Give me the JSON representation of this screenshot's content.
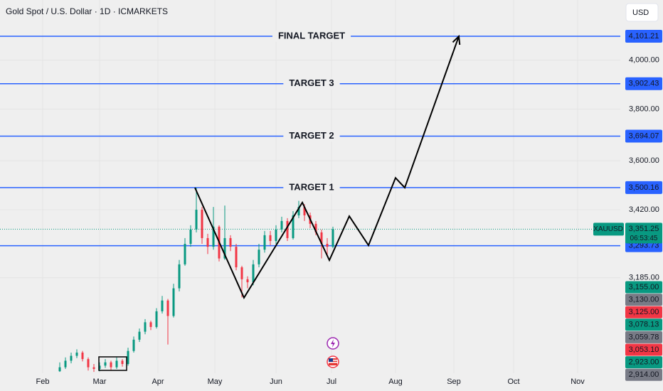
{
  "chart_data": {
    "type": "candlestick",
    "title": "Gold Spot / U.S. Dollar · 1D · ICMARKETS",
    "currency": "USD",
    "log_scale": true,
    "grid": true,
    "xlim": [
      -15,
      203
    ],
    "xticks": [
      {
        "value": 0,
        "label": "Feb"
      },
      {
        "value": 20,
        "label": "Mar"
      },
      {
        "value": 40.5,
        "label": "Apr"
      },
      {
        "value": 60.5,
        "label": "May"
      },
      {
        "value": 82,
        "label": "Jun"
      },
      {
        "value": 101.5,
        "label": "Jul"
      },
      {
        "value": 124,
        "label": "Aug"
      },
      {
        "value": 144.5,
        "label": "Sep"
      },
      {
        "value": 165.5,
        "label": "Oct"
      },
      {
        "value": 188,
        "label": "Nov"
      }
    ],
    "ylim": [
      2882,
      4260
    ],
    "yticks": [
      {
        "value": 3185,
        "label": "3,185.00"
      },
      {
        "value": 3420,
        "label": "3,420.00"
      },
      {
        "value": 3600,
        "label": "3,600.00"
      },
      {
        "value": 3800,
        "label": "3,800.00"
      },
      {
        "value": 4000,
        "label": "4,000.00"
      }
    ],
    "up_color": "#089981",
    "down_color": "#f23645",
    "candles": {
      "x": [
        6,
        8,
        10,
        12,
        14,
        16,
        18,
        20,
        22,
        24,
        26,
        28,
        30,
        32,
        34,
        36,
        38,
        40,
        42,
        44,
        46,
        48,
        50,
        52,
        54,
        56,
        58,
        60,
        62,
        64,
        66,
        68,
        70,
        72,
        74,
        76,
        78,
        80,
        82,
        84,
        86,
        88,
        90,
        92,
        94,
        96,
        98,
        100,
        102
      ],
      "open": [
        2888,
        2900,
        2920,
        2935,
        2945,
        2925,
        2900,
        2895,
        2905,
        2915,
        2900,
        2920,
        2910,
        2950,
        2985,
        3010,
        3040,
        3025,
        3075,
        3110,
        3060,
        3150,
        3230,
        3300,
        3350,
        3420,
        3320,
        3290,
        3360,
        3250,
        3320,
        3290,
        3220,
        3180,
        3170,
        3230,
        3280,
        3330,
        3310,
        3350,
        3380,
        3320,
        3400,
        3430,
        3400,
        3370,
        3340,
        3300,
        3290
      ],
      "high": [
        2915,
        2930,
        2945,
        2955,
        2950,
        2930,
        2910,
        2915,
        2925,
        2920,
        2930,
        2925,
        2960,
        2995,
        3020,
        3050,
        3045,
        3085,
        3125,
        3115,
        3165,
        3245,
        3320,
        3365,
        3500,
        3430,
        3335,
        3430,
        3365,
        3435,
        3330,
        3300,
        3225,
        3190,
        3245,
        3300,
        3345,
        3345,
        3365,
        3395,
        3390,
        3415,
        3452,
        3440,
        3410,
        3380,
        3350,
        3320,
        3360
      ],
      "low": [
        2886,
        2895,
        2912,
        2928,
        2918,
        2890,
        2886,
        2888,
        2898,
        2892,
        2895,
        2902,
        2905,
        2945,
        2978,
        3002,
        3015,
        3020,
        3068,
        2970,
        3055,
        3140,
        3225,
        3290,
        3340,
        3300,
        3265,
        3280,
        3240,
        3245,
        3275,
        3210,
        3120,
        3150,
        3160,
        3220,
        3270,
        3295,
        3300,
        3340,
        3310,
        3315,
        3390,
        3380,
        3355,
        3330,
        3250,
        3260,
        3285
      ],
      "close": [
        2900,
        2920,
        2935,
        2945,
        2925,
        2900,
        2895,
        2905,
        2915,
        2900,
        2920,
        2910,
        2950,
        2985,
        3010,
        3040,
        3025,
        3075,
        3110,
        3060,
        3150,
        3230,
        3300,
        3350,
        3420,
        3320,
        3290,
        3360,
        3250,
        3320,
        3290,
        3220,
        3180,
        3170,
        3230,
        3280,
        3330,
        3310,
        3350,
        3380,
        3320,
        3400,
        3430,
        3400,
        3370,
        3340,
        3300,
        3290,
        3351.25
      ]
    },
    "level_color": "#2962ff",
    "levels": [
      {
        "name": "FINAL TARGET",
        "value": 4101.21,
        "label": "4,101.21"
      },
      {
        "name": "TARGET 3",
        "value": 3902.43,
        "label": "3,902.43"
      },
      {
        "name": "TARGET 2",
        "value": 3694.07,
        "label": "3,694.07"
      },
      {
        "name": "TARGET 1",
        "value": 3500.16,
        "label": "3,500.16"
      },
      {
        "value": 3293.73,
        "label": "3,293.73"
      }
    ],
    "path_color": "#000000",
    "path": {
      "x": [
        53.5,
        70.75,
        91.25,
        100.75,
        107.75,
        114.5,
        124,
        127.25,
        146.25
      ],
      "y": [
        3500,
        3119,
        3446,
        3244,
        3397,
        3295,
        3536,
        3500,
        4101.21
      ]
    },
    "last": {
      "symbol": "XAUUSD",
      "value": 3351.25,
      "label": "3,351.25",
      "countdown": "06:53:45",
      "color": "#089981"
    },
    "price_tags": [
      {
        "label": "3,155.00",
        "color": "#089981"
      },
      {
        "label": "3,130.00",
        "color": "#787b86"
      },
      {
        "label": "3,125.00",
        "color": "#f23645"
      },
      {
        "label": "3,078.13",
        "color": "#089981"
      },
      {
        "label": "3,059.78",
        "color": "#787b86"
      },
      {
        "label": "3,053.10",
        "color": "#f23645"
      },
      {
        "label": "2,923.00",
        "color": "#089981"
      },
      {
        "label": "2,914.00",
        "color": "#787b86"
      }
    ]
  }
}
